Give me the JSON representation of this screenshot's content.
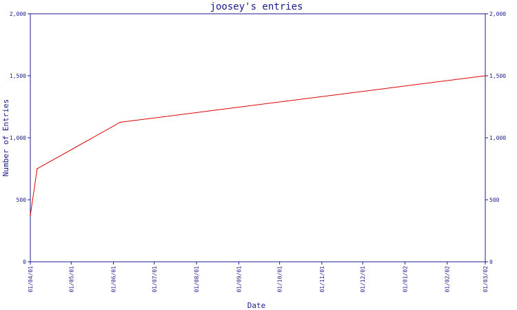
{
  "chart_data": {
    "type": "line",
    "title": "joosey's entries",
    "xlabel": "Date",
    "ylabel": "Number of Entries",
    "x_ticks": [
      "01/04/01",
      "01/05/01",
      "01/06/01",
      "01/07/01",
      "01/08/01",
      "01/09/01",
      "01/10/01",
      "01/11/01",
      "01/12/01",
      "01/01/02",
      "01/02/02",
      "01/03/02"
    ],
    "y_ticks": [
      "0",
      "500",
      "1,000",
      "1,500",
      "2,000"
    ],
    "ylim": [
      0,
      2000
    ],
    "xlim": [
      "2001-04-01",
      "2002-03-01"
    ],
    "grid": false,
    "series": [
      {
        "color": "#e00000",
        "points": [
          {
            "x": "2001-04-01",
            "y": 375
          },
          {
            "x": "2001-04-06",
            "y": 750
          },
          {
            "x": "2001-06-06",
            "y": 1125
          },
          {
            "x": "2002-03-01",
            "y": 1500
          }
        ]
      }
    ]
  },
  "colors": {
    "axis": "#1a1a8c",
    "line": "#e00000"
  }
}
